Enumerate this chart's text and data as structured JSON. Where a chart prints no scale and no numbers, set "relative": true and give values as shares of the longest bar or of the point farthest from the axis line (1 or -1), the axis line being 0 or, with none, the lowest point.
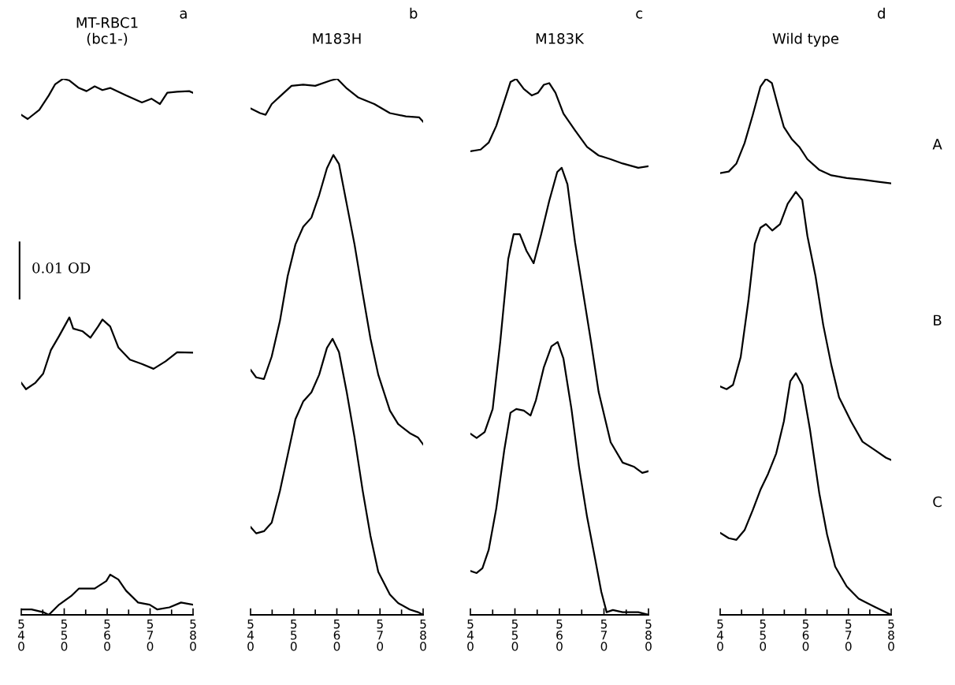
{
  "chart_data": [
    {
      "type": "line",
      "title": "MT-RBC1\n(bc1-)",
      "annotations": [
        "a",
        "0.01 OD"
      ],
      "relative": true,
      "tick_labels": "x",
      "xlim": [
        540,
        580
      ],
      "xticks": [
        540,
        {
          "value": 545,
          "label": null
        },
        550,
        {
          "value": 555,
          "label": null
        },
        560,
        {
          "value": 565,
          "label": null
        },
        570,
        {
          "value": 575,
          "label": null
        },
        580
      ],
      "series": [
        {
          "color": "#000000",
          "x": [
            540,
            541.5,
            544.2,
            546.4,
            547.9,
            549.7,
            551.2,
            553.4,
            555.2,
            557.1,
            558.9,
            560.7,
            564.4,
            568.1,
            570.3,
            572.3,
            574,
            576.3,
            579.1,
            580
          ],
          "values": [
            0.933,
            0.925,
            0.942,
            0.969,
            0.99,
            1.0,
            0.997,
            0.983,
            0.977,
            0.986,
            0.979,
            0.983,
            0.969,
            0.956,
            0.963,
            0.953,
            0.974,
            0.976,
            0.977,
            0.974
          ]
        },
        {
          "color": "#000000",
          "x": [
            540,
            541.1,
            543.3,
            545.1,
            546.9,
            548.8,
            551.2,
            552.1,
            554.3,
            556.1,
            557.9,
            558.9,
            560.7,
            562.6,
            565.3,
            568.1,
            570.8,
            573.6,
            576.3,
            580
          ],
          "values": [
            0.433,
            0.421,
            0.433,
            0.45,
            0.494,
            0.52,
            0.555,
            0.534,
            0.529,
            0.517,
            0.538,
            0.551,
            0.538,
            0.499,
            0.476,
            0.468,
            0.459,
            0.473,
            0.49,
            0.489
          ]
        },
        {
          "color": "#000000",
          "x": [
            540,
            542.4,
            545.1,
            546.4,
            548.8,
            551.6,
            553.4,
            557.1,
            559.8,
            560.7,
            562.6,
            564.4,
            567.2,
            569.9,
            571.7,
            574.5,
            577.2,
            580
          ],
          "values": [
            0.01,
            0.01,
            0.005,
            0,
            0.019,
            0.035,
            0.049,
            0.049,
            0.063,
            0.075,
            0.066,
            0.045,
            0.023,
            0.019,
            0.01,
            0.014,
            0.023,
            0.019
          ]
        }
      ]
    },
    {
      "type": "line",
      "title": "M183H",
      "annotations": [
        "b"
      ],
      "relative": true,
      "tick_labels": "x",
      "xlim": [
        540,
        580
      ],
      "xticks": [
        540,
        {
          "value": 545,
          "label": null
        },
        550,
        {
          "value": 555,
          "label": null
        },
        560,
        {
          "value": 565,
          "label": null
        },
        570,
        {
          "value": 575,
          "label": null
        },
        580
      ],
      "series": [
        {
          "color": "#000000",
          "x": [
            540,
            542.2,
            543.5,
            544.9,
            546.8,
            549.5,
            552.2,
            555,
            558.6,
            560.1,
            562.3,
            565,
            568.7,
            572.3,
            576,
            579.1,
            580
          ],
          "values": [
            0.945,
            0.936,
            0.933,
            0.953,
            0.967,
            0.987,
            0.989,
            0.987,
            0.997,
            1.0,
            0.982,
            0.965,
            0.953,
            0.936,
            0.93,
            0.928,
            0.92
          ]
        },
        {
          "color": "#000000",
          "x": [
            540,
            541.3,
            543.1,
            544.9,
            546.8,
            548.6,
            550.4,
            552.2,
            554.1,
            555.9,
            557.7,
            559.2,
            560.5,
            562.3,
            564.1,
            566,
            567.8,
            569.6,
            572.3,
            574.2,
            576.9,
            578.8,
            580
          ],
          "values": [
            0.457,
            0.443,
            0.44,
            0.482,
            0.548,
            0.632,
            0.691,
            0.724,
            0.741,
            0.783,
            0.833,
            0.858,
            0.841,
            0.766,
            0.691,
            0.599,
            0.515,
            0.448,
            0.381,
            0.356,
            0.339,
            0.331,
            0.318
          ]
        },
        {
          "color": "#000000",
          "x": [
            540,
            541.3,
            543.1,
            544.9,
            546.8,
            548.6,
            550.4,
            552.2,
            554.1,
            555.9,
            557.7,
            559,
            560.5,
            562.3,
            564.1,
            566,
            567.8,
            569.6,
            572.3,
            574.2,
            576.9,
            578.8,
            580
          ],
          "values": [
            0.164,
            0.152,
            0.156,
            0.172,
            0.231,
            0.298,
            0.365,
            0.398,
            0.415,
            0.448,
            0.498,
            0.515,
            0.49,
            0.415,
            0.331,
            0.231,
            0.147,
            0.08,
            0.038,
            0.022,
            0.01,
            0.005,
            0
          ]
        }
      ]
    },
    {
      "type": "line",
      "title": "M183K",
      "annotations": [
        "c"
      ],
      "relative": true,
      "tick_labels": "x",
      "xlim": [
        540,
        580
      ],
      "xticks": [
        540,
        {
          "value": 545,
          "label": null
        },
        550,
        {
          "value": 555,
          "label": null
        },
        560,
        {
          "value": 565,
          "label": null
        },
        570,
        {
          "value": 575,
          "label": null
        },
        580
      ],
      "series": [
        {
          "color": "#000000",
          "x": [
            540,
            542.3,
            544.1,
            545.8,
            547.6,
            549,
            550.3,
            552,
            553.8,
            555.2,
            556.5,
            557.7,
            559.1,
            560.9,
            563.5,
            566.2,
            568.8,
            571.5,
            574.2,
            577.7,
            580
          ],
          "values": [
            0.865,
            0.868,
            0.881,
            0.912,
            0.958,
            0.994,
            1.0,
            0.981,
            0.969,
            0.974,
            0.989,
            0.992,
            0.974,
            0.935,
            0.904,
            0.873,
            0.857,
            0.85,
            0.842,
            0.834,
            0.837
          ]
        },
        {
          "color": "#000000",
          "x": [
            540,
            541.4,
            543.2,
            545,
            546.7,
            548.5,
            549.7,
            551.1,
            552.6,
            554.2,
            555.9,
            557.7,
            559.5,
            560.5,
            561.8,
            563.5,
            565.3,
            567.1,
            568.8,
            571.5,
            574.2,
            576.8,
            578.6,
            580
          ],
          "values": [
            0.338,
            0.33,
            0.341,
            0.384,
            0.509,
            0.664,
            0.71,
            0.71,
            0.679,
            0.656,
            0.71,
            0.772,
            0.826,
            0.834,
            0.803,
            0.695,
            0.602,
            0.509,
            0.416,
            0.322,
            0.284,
            0.276,
            0.265,
            0.268
          ]
        },
        {
          "color": "#000000",
          "x": [
            540,
            541.4,
            542.7,
            544.1,
            545.8,
            547.6,
            549,
            550.3,
            552,
            553.5,
            554.7,
            556.5,
            558.2,
            559.6,
            560.9,
            562.7,
            564.4,
            566.2,
            568,
            569.4,
            570.6,
            572,
            574.2,
            577.7,
            580
          ],
          "values": [
            0.082,
            0.078,
            0.087,
            0.121,
            0.198,
            0.307,
            0.377,
            0.384,
            0.381,
            0.372,
            0.4,
            0.462,
            0.501,
            0.509,
            0.478,
            0.384,
            0.276,
            0.183,
            0.105,
            0.043,
            0.005,
            0.009,
            0.005,
            0.005,
            0
          ]
        }
      ]
    },
    {
      "type": "line",
      "title": "Wild type",
      "annotations": [
        "d"
      ],
      "relative": true,
      "tick_labels": "x",
      "xlim": [
        540,
        580
      ],
      "xticks": [
        540,
        {
          "value": 545,
          "label": null
        },
        550,
        {
          "value": 555,
          "label": null
        },
        560,
        {
          "value": 565,
          "label": null
        },
        570,
        {
          "value": 575,
          "label": null
        },
        580
      ],
      "series": [
        {
          "name": "A",
          "color": "#000000",
          "x": [
            540,
            542,
            543.8,
            545.7,
            547.6,
            549.4,
            550.7,
            552.1,
            553.6,
            554.9,
            556.8,
            558.6,
            560.4,
            563.2,
            566,
            569.6,
            573.3,
            577,
            580
          ],
          "values": [
            0.824,
            0.827,
            0.842,
            0.88,
            0.932,
            0.985,
            1.0,
            0.992,
            0.947,
            0.91,
            0.887,
            0.872,
            0.85,
            0.83,
            0.82,
            0.815,
            0.812,
            0.808,
            0.805
          ]
        },
        {
          "name": "B",
          "color": "#000000",
          "x": [
            540,
            541.5,
            543,
            544.8,
            546.6,
            548.1,
            549.4,
            550.7,
            552.2,
            554,
            555.8,
            557.7,
            559.2,
            560.4,
            562.3,
            564.1,
            566,
            567.8,
            570.6,
            573.3,
            576.1,
            578.8,
            580
          ],
          "values": [
            0.426,
            0.421,
            0.429,
            0.481,
            0.586,
            0.692,
            0.722,
            0.729,
            0.717,
            0.729,
            0.767,
            0.789,
            0.774,
            0.707,
            0.632,
            0.541,
            0.466,
            0.406,
            0.361,
            0.323,
            0.308,
            0.293,
            0.289
          ]
        },
        {
          "name": "C",
          "color": "#000000",
          "x": [
            540,
            542,
            543.8,
            545.7,
            547.6,
            549.4,
            551.2,
            553.1,
            554.9,
            556.4,
            557.7,
            559.2,
            561,
            563.2,
            565,
            566.9,
            569.6,
            572.4,
            576.1,
            580
          ],
          "values": [
            0.153,
            0.143,
            0.14,
            0.158,
            0.195,
            0.233,
            0.263,
            0.301,
            0.361,
            0.436,
            0.451,
            0.429,
            0.346,
            0.226,
            0.15,
            0.09,
            0.053,
            0.03,
            0.015,
            0
          ]
        }
      ]
    }
  ]
}
